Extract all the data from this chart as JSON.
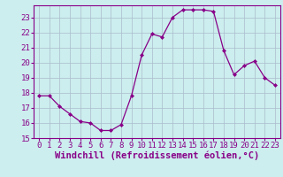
{
  "x": [
    0,
    1,
    2,
    3,
    4,
    5,
    6,
    7,
    8,
    9,
    10,
    11,
    12,
    13,
    14,
    15,
    16,
    17,
    18,
    19,
    20,
    21,
    22,
    23
  ],
  "y": [
    17.8,
    17.8,
    17.1,
    16.6,
    16.1,
    16.0,
    15.5,
    15.5,
    15.9,
    17.8,
    20.5,
    21.9,
    21.7,
    23.0,
    23.5,
    23.5,
    23.5,
    23.4,
    20.8,
    19.2,
    19.8,
    20.1,
    19.0,
    18.5
  ],
  "line_color": "#880088",
  "marker": "D",
  "marker_size": 2.0,
  "bg_color": "#cceeee",
  "grid_color": "#aabbcc",
  "xlabel": "Windchill (Refroidissement éolien,°C)",
  "xlim": [
    -0.5,
    23.5
  ],
  "ylim": [
    15,
    23.8
  ],
  "yticks": [
    15,
    16,
    17,
    18,
    19,
    20,
    21,
    22,
    23
  ],
  "xticks": [
    0,
    1,
    2,
    3,
    4,
    5,
    6,
    7,
    8,
    9,
    10,
    11,
    12,
    13,
    14,
    15,
    16,
    17,
    18,
    19,
    20,
    21,
    22,
    23
  ],
  "xlabel_fontsize": 7.5,
  "tick_fontsize": 6.5
}
